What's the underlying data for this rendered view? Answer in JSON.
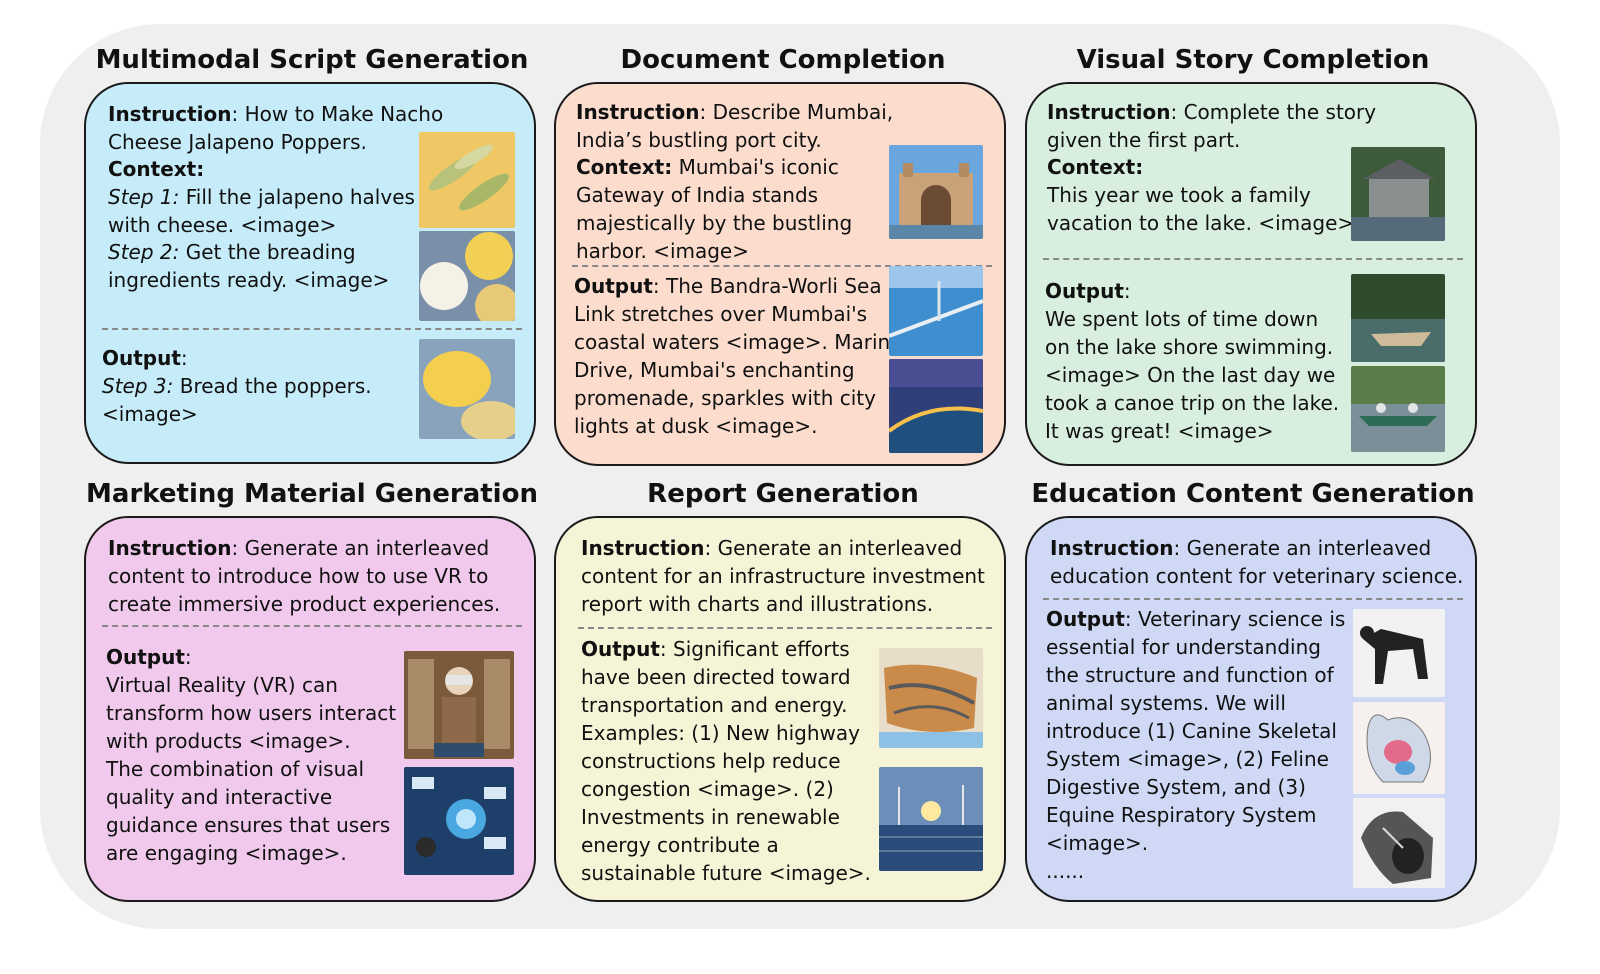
{
  "cards": [
    {
      "title": "Multimodal Script Generation",
      "instruction_label": "Instruction",
      "instruction_text": ": How to Make Nacho\nCheese Jalapeno Poppers.",
      "context_label": "Context:",
      "step1_label": "Step 1:",
      "step1_text": " Fill the jalapeno halves\nwith cheese. <image>",
      "step2_label": "Step 2:",
      "step2_text": " Get the breading\ningredients ready. <image>",
      "output_label": "Output",
      "output_colon": ":",
      "step3_label": "Step 3:",
      "step3_text": " Bread the poppers.\n<image>"
    },
    {
      "title": "Document Completion",
      "instruction_label": "Instruction",
      "instruction_text": ": Describe Mumbai,\nIndia’s bustling port city.",
      "context_label": "Context:",
      "context_text": " Mumbai's iconic\nGateway of India stands\nmajestically by the bustling\nharbor. <image>",
      "output_label": "Output",
      "output_text": ": The Bandra-Worli Sea\nLink stretches over Mumbai's\ncoastal waters <image>. Marine\nDrive, Mumbai's enchanting\npromenade, sparkles with city\nlights at dusk <image>."
    },
    {
      "title": "Visual Story Completion",
      "instruction_label": "Instruction",
      "instruction_text": ": Complete the story\ngiven the first part.",
      "context_label": "Context:",
      "context_text": "This year we took a family\nvacation to the lake. <image>",
      "output_label": "Output",
      "output_colon": ":",
      "output_text": "We spent lots of time down\non the lake shore swimming.\n<image> On the last day we\ntook a canoe trip on the lake.\nIt was great! <image>"
    },
    {
      "title": "Marketing Material Generation",
      "instruction_label": "Instruction",
      "instruction_text": ": Generate an interleaved\ncontent to introduce how to use VR to\ncreate immersive product experiences.",
      "output_label": "Output",
      "output_colon": ":",
      "output_text": "Virtual Reality (VR) can\ntransform how users interact\nwith products <image>.\nThe combination of visual\nquality and interactive\nguidance ensures that users\nare engaging <image>."
    },
    {
      "title": "Report Generation",
      "instruction_label": "Instruction",
      "instruction_text": ": Generate an interleaved\ncontent for an infrastructure investment\nreport with charts and illustrations.",
      "output_label": "Output",
      "output_text": ": Significant efforts\nhave been directed toward\ntransportation and energy.\nExamples: (1) New highway\nconstructions help reduce\ncongestion <image>. (2)\nInvestments in renewable\nenergy contribute a\nsustainable future <image>."
    },
    {
      "title": "Education Content Generation",
      "instruction_label": "Instruction",
      "instruction_text": ": Generate an interleaved\neducation content for veterinary science.",
      "output_label": "Output",
      "output_text": ": Veterinary science is\nessential for understanding\nthe structure and function of\nanimal systems. We will\nintroduce (1) Canine Skeletal\nSystem <image>, (2) Feline\nDigestive System, and (3)\nEquine Respiratory System\n<image>.\n......"
    }
  ]
}
